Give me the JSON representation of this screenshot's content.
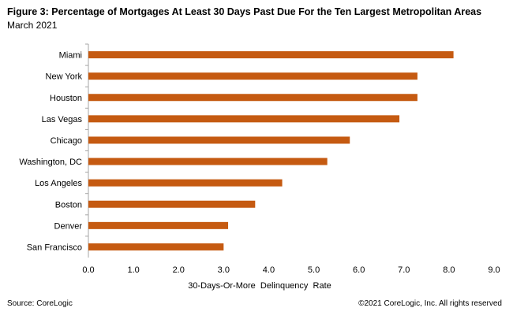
{
  "figure": {
    "title": "Figure 3: Percentage of Mortgages At Least 30 Days Past Due For the Ten Largest Metropolitan Areas",
    "subtitle": "March 2021",
    "source": "Source: CoreLogic",
    "copyright": "©2021 CoreLogic, Inc. All rights reserved"
  },
  "colors": {
    "bar": "#C55A11",
    "axis": "#A6A6A6"
  },
  "chart_data": {
    "type": "bar",
    "orientation": "horizontal",
    "categories": [
      "Miami",
      "New York",
      "Houston",
      "Las Vegas",
      "Chicago",
      "Washington, DC",
      "Los Angeles",
      "Boston",
      "Denver",
      "San Francisco"
    ],
    "values": [
      8.1,
      7.3,
      7.3,
      6.9,
      5.8,
      5.3,
      4.3,
      3.7,
      3.1,
      3.0
    ],
    "xlabel": "30-Days-Or-More  Delinquency  Rate",
    "ylabel": "",
    "xlim": [
      0,
      9
    ],
    "xticks": [
      0,
      1,
      2,
      3,
      4,
      5,
      6,
      7,
      8,
      9
    ],
    "xtick_labels": [
      "0.0",
      "1.0",
      "2.0",
      "3.0",
      "4.0",
      "5.0",
      "6.0",
      "7.0",
      "8.0",
      "9.0"
    ],
    "grid": false,
    "legend": "none"
  }
}
